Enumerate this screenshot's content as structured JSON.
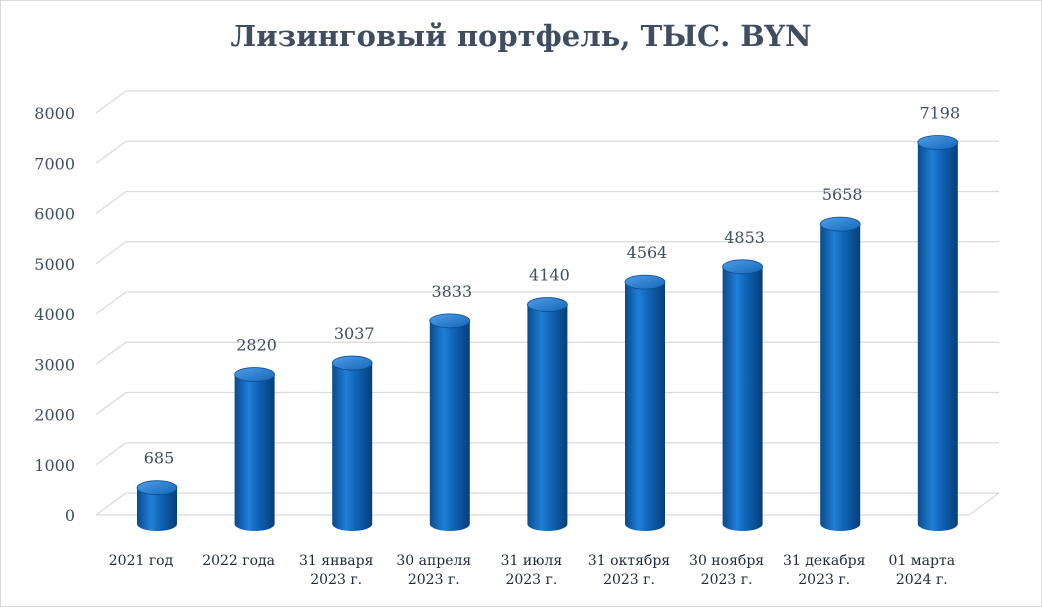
{
  "chart_data": {
    "type": "bar",
    "title": "Лизинговый портфель, ТЫС. BYN",
    "categories": [
      [
        "2021 год"
      ],
      [
        "2022 года"
      ],
      [
        "31 января",
        "2023 г."
      ],
      [
        "30 апреля",
        "2023 г."
      ],
      [
        "31 июля",
        "2023 г."
      ],
      [
        "31 октября",
        "2023 г."
      ],
      [
        "30 ноября",
        "2023 г."
      ],
      [
        "31 декабря",
        "2023 г."
      ],
      [
        "01 марта",
        "2024 г."
      ]
    ],
    "values": [
      685,
      2820,
      3037,
      3833,
      4140,
      4564,
      4853,
      5658,
      7198
    ],
    "ylim": [
      0,
      8000
    ],
    "yticks": [
      "0",
      "1000",
      "2000",
      "3000",
      "4000",
      "5000",
      "6000",
      "7000",
      "8000"
    ],
    "grid": true,
    "legend": "none",
    "style": "3d-cylinder",
    "colors": {
      "bar": "#0e63b5",
      "bar_dark": "#0a4a8c",
      "bar_light": "#3a8ee0",
      "grid": "#d9d9d9",
      "text": "#3f4d60"
    }
  }
}
